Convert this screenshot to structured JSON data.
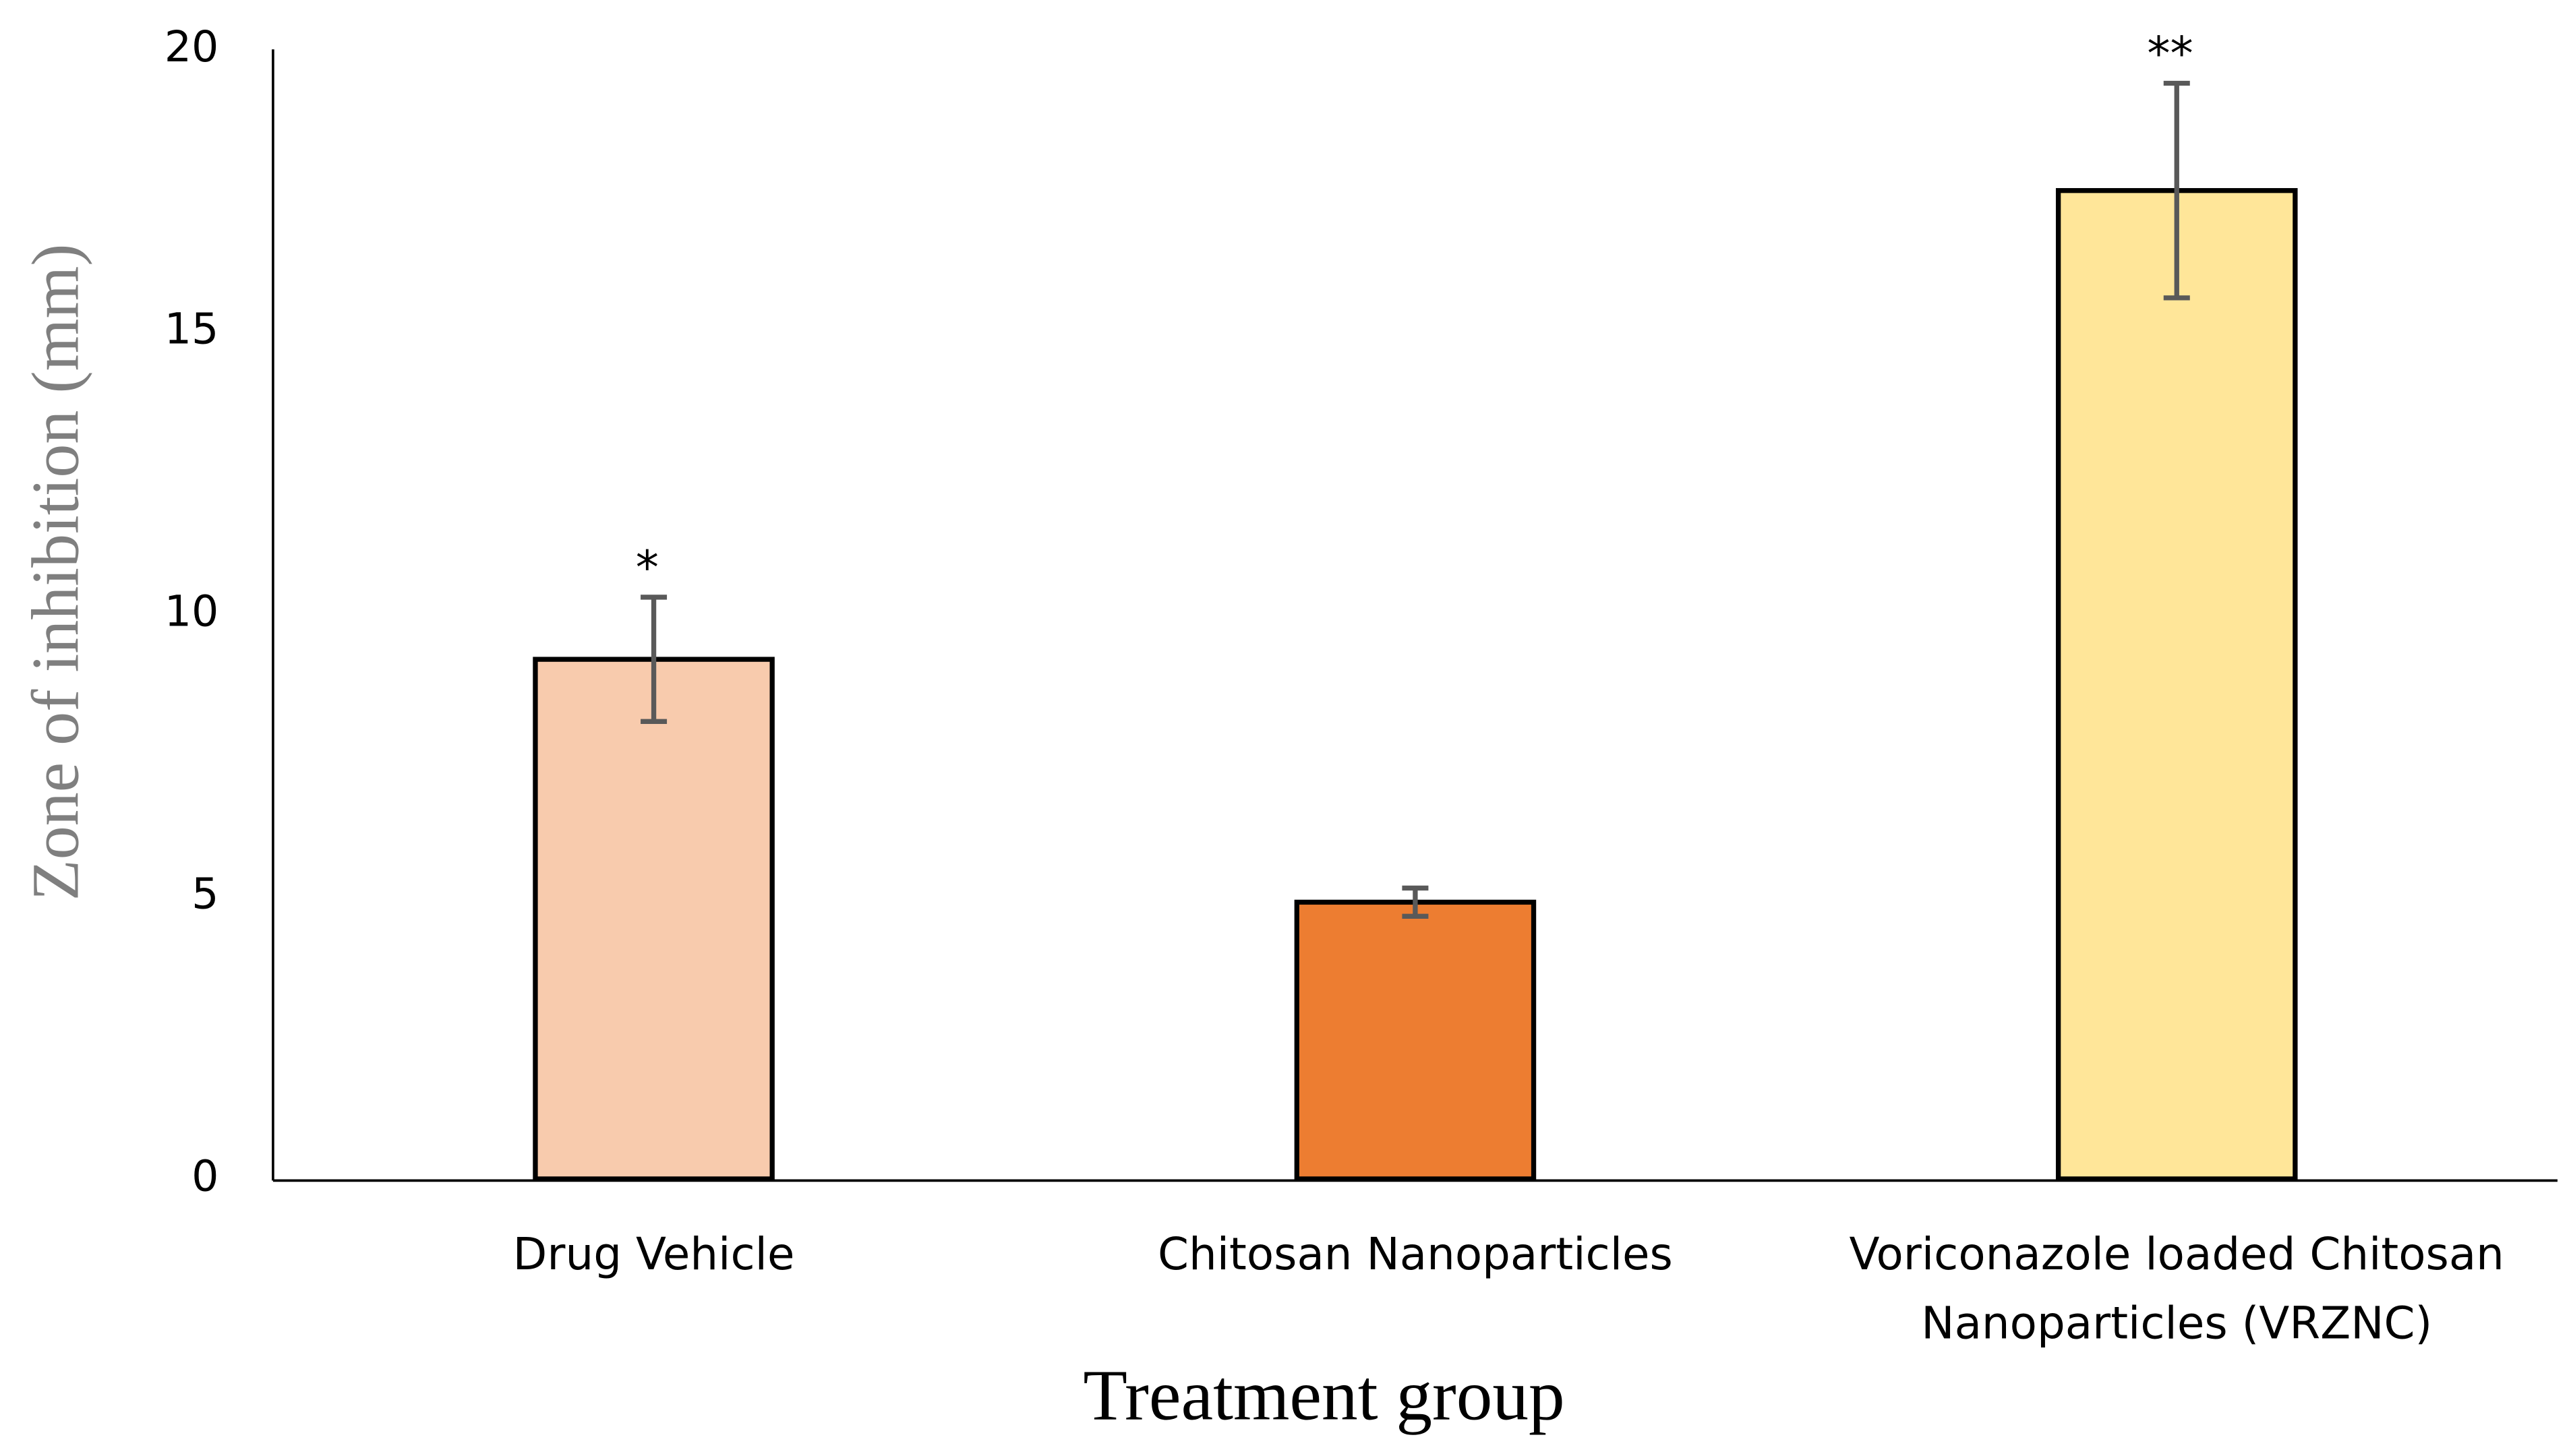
{
  "chart_data": {
    "type": "bar",
    "x_label": "Treatment group",
    "y_label": "Zone of inhibition (mm)",
    "categories": [
      "Drug Vehicle",
      "Chitosan Nanoparticles",
      "Voriconazole loaded Chitosan Nanoparticles (VRZNC)"
    ],
    "values": [
      9.2,
      4.9,
      17.5
    ],
    "errors": [
      1.1,
      0.25,
      1.9
    ],
    "annotations": [
      "*",
      null,
      "**"
    ],
    "colors": [
      "#f8cbad",
      "#ed7d31",
      "#ffe699"
    ],
    "ylim": [
      0,
      20
    ],
    "yticks": [
      0,
      5,
      10,
      15,
      20
    ],
    "grid": false
  }
}
